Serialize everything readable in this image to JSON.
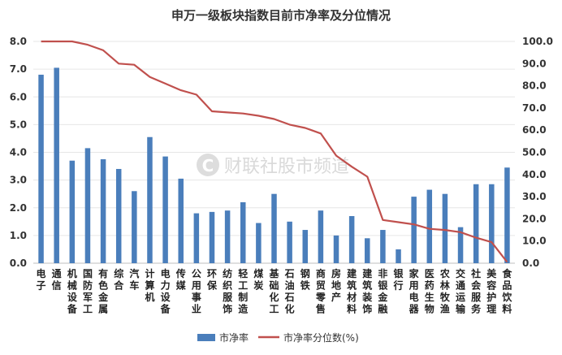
{
  "watermark": {
    "logo_letter": "C",
    "text": "财联社股市频道"
  },
  "chart_data": {
    "type": "bar+line",
    "title": "申万一级板块指数目前市净率及分位情况",
    "categories": [
      "电子",
      "通信",
      "机械设备",
      "国防军工",
      "有色金属",
      "综合",
      "汽车",
      "计算机",
      "电力设备",
      "传媒",
      "公用事业",
      "环保",
      "纺织服饰",
      "轻工制造",
      "煤炭",
      "基础化工",
      "石油石化",
      "钢铁",
      "商贸零售",
      "房地产",
      "建筑材料",
      "建筑装饰",
      "非银金融",
      "银行",
      "家用电器",
      "医药生物",
      "农林牧渔",
      "交通运输",
      "社会服务",
      "美容护理",
      "食品饮料"
    ],
    "series": [
      {
        "name": "市净率",
        "type": "bar",
        "axis": "left",
        "color": "#4a7ebb",
        "values": [
          6.8,
          7.05,
          3.7,
          4.15,
          3.75,
          3.4,
          2.6,
          4.55,
          3.85,
          3.05,
          1.8,
          1.85,
          1.9,
          2.2,
          1.45,
          2.5,
          1.5,
          1.2,
          1.9,
          1.0,
          1.7,
          0.9,
          1.2,
          0.5,
          2.4,
          2.65,
          2.5,
          1.3,
          2.85,
          2.85,
          3.45
        ]
      },
      {
        "name": "市净率分位数(%)",
        "type": "line",
        "axis": "right",
        "color": "#c0504d",
        "values": [
          100,
          100,
          100,
          98.5,
          96,
          90,
          89.5,
          84,
          81,
          78,
          76,
          68.5,
          68,
          67.5,
          66.5,
          65,
          62.5,
          61,
          58.5,
          48.5,
          43.5,
          39,
          19.5,
          18.5,
          17.5,
          15.5,
          15,
          14,
          11.5,
          9.5,
          0.5
        ]
      }
    ],
    "y_left": {
      "min": 0,
      "max": 8,
      "step": 1,
      "tick_labels": [
        "0.0",
        "1.0",
        "2.0",
        "3.0",
        "4.0",
        "5.0",
        "6.0",
        "7.0",
        "8.0"
      ]
    },
    "y_right": {
      "min": 0,
      "max": 100,
      "step": 10,
      "tick_labels": [
        "0.0",
        "10.0",
        "20.0",
        "30.0",
        "40.0",
        "50.0",
        "60.0",
        "70.0",
        "80.0",
        "90.0",
        "100.0"
      ]
    },
    "grid": true,
    "legend": "bottom"
  }
}
